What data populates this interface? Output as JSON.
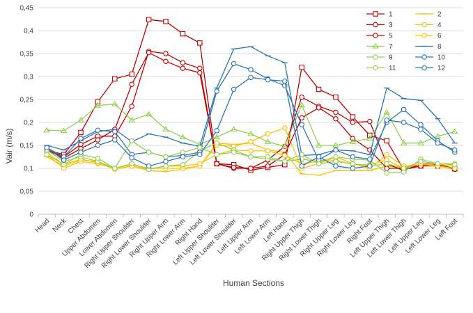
{
  "chart_data": {
    "type": "line",
    "title": "",
    "xlabel": "Human Sections",
    "ylabel": "Vair (m/s)",
    "ylim": [
      0,
      0.45
    ],
    "yticks": [
      "0",
      "0,05",
      "0,1",
      "0,15",
      "0,2",
      "0,25",
      "0,3",
      "0,35",
      "0,4",
      "0,45"
    ],
    "grid": "horizontal",
    "legend_position": "top-right",
    "categories": [
      "Head",
      "Neck",
      "Chest",
      "Upper Abdomen",
      "Lower Abdomen",
      "Right Upper Shoulder",
      "Right Lower Shoulder",
      "Right Upper Arm",
      "Right Lower Arm",
      "Right Hand",
      "Left Upper Shoulder",
      "Left Lower Shoulder",
      "Left Upper Arm",
      "Left Lower Arm",
      "Left Hand",
      "Right Upper Thigh",
      "Right Lower Thigh",
      "Right Upper Leg",
      "Right Lower Leg",
      "Right Foot",
      "Left Upper Thigh",
      "Left Lower Thigh",
      "Left Upper Leg",
      "Left Lower Leg",
      "Left Foot"
    ],
    "series": [
      {
        "name": "1",
        "color": "#c00000",
        "marker": "square",
        "values": [
          0.14,
          0.13,
          0.178,
          0.245,
          0.295,
          0.305,
          0.424,
          0.42,
          0.393,
          0.373,
          0.11,
          0.108,
          0.096,
          0.102,
          0.108,
          0.32,
          0.272,
          0.255,
          0.212,
          0.172,
          0.16,
          0.097,
          0.105,
          0.105,
          0.099
        ]
      },
      {
        "name": "2",
        "color": "#ffc000",
        "marker": "dash",
        "values": [
          0.125,
          0.105,
          0.118,
          0.115,
          0.098,
          0.105,
          0.095,
          0.093,
          0.098,
          0.105,
          0.155,
          0.152,
          0.155,
          0.14,
          0.135,
          0.088,
          0.085,
          0.095,
          0.095,
          0.095,
          0.105,
          0.1,
          0.105,
          0.105,
          0.098
        ]
      },
      {
        "name": "3",
        "color": "#c00000",
        "marker": "circle",
        "values": [
          0.14,
          0.125,
          0.152,
          0.17,
          0.17,
          0.235,
          0.355,
          0.35,
          0.33,
          0.318,
          0.11,
          0.1,
          0.1,
          0.118,
          0.148,
          0.255,
          0.235,
          0.222,
          0.2,
          0.202,
          0.11,
          0.095,
          0.11,
          0.108,
          0.1
        ]
      },
      {
        "name": "4",
        "color": "#ffc000",
        "marker": "circle",
        "values": [
          0.13,
          0.1,
          0.115,
          0.11,
          0.1,
          0.108,
          0.1,
          0.1,
          0.1,
          0.105,
          0.15,
          0.148,
          0.158,
          0.175,
          0.188,
          0.1,
          0.11,
          0.125,
          0.11,
          0.1,
          0.13,
          0.105,
          0.108,
          0.108,
          0.105
        ]
      },
      {
        "name": "5",
        "color": "#c00000",
        "marker": "circle",
        "values": [
          0.14,
          0.122,
          0.143,
          0.162,
          0.185,
          0.283,
          0.352,
          0.333,
          0.318,
          0.308,
          0.11,
          0.102,
          0.1,
          0.105,
          0.13,
          0.21,
          0.232,
          0.208,
          0.165,
          0.14,
          0.1,
          0.1,
          0.105,
          0.108,
          0.098
        ]
      },
      {
        "name": "6",
        "color": "#ffc000",
        "marker": "circle",
        "values": [
          0.135,
          0.108,
          0.12,
          0.112,
          0.098,
          0.105,
          0.098,
          0.105,
          0.105,
          0.11,
          0.13,
          0.14,
          0.138,
          0.138,
          0.128,
          0.11,
          0.115,
          0.118,
          0.108,
          0.108,
          0.118,
          0.1,
          0.11,
          0.105,
          0.1
        ]
      },
      {
        "name": "7",
        "color": "#92d050",
        "marker": "triangle",
        "values": [
          0.183,
          0.182,
          0.205,
          0.237,
          0.24,
          0.205,
          0.218,
          0.185,
          0.168,
          0.152,
          0.168,
          0.185,
          0.175,
          0.158,
          0.148,
          0.238,
          0.15,
          0.15,
          0.158,
          0.165,
          0.222,
          0.155,
          0.155,
          0.17,
          0.18
        ]
      },
      {
        "name": "8",
        "color": "#2e75b6",
        "marker": "dash",
        "values": [
          0.15,
          0.14,
          0.16,
          0.18,
          0.185,
          0.158,
          0.175,
          0.168,
          0.155,
          0.148,
          0.275,
          0.36,
          0.365,
          0.345,
          0.33,
          0.128,
          0.13,
          0.14,
          0.138,
          0.13,
          0.275,
          0.252,
          0.248,
          0.208,
          0.155
        ]
      },
      {
        "name": "9",
        "color": "#92d050",
        "marker": "circle",
        "values": [
          0.14,
          0.115,
          0.125,
          0.115,
          0.1,
          0.11,
          0.098,
          0.105,
          0.108,
          0.138,
          0.155,
          0.14,
          0.125,
          0.12,
          0.115,
          0.12,
          0.115,
          0.125,
          0.12,
          0.118,
          0.09,
          0.092,
          0.12,
          0.11,
          0.11
        ]
      },
      {
        "name": "10",
        "color": "#2e75b6",
        "marker": "circle",
        "values": [
          0.145,
          0.125,
          0.165,
          0.183,
          0.18,
          0.13,
          0.135,
          0.125,
          0.128,
          0.135,
          0.268,
          0.328,
          0.315,
          0.295,
          0.28,
          0.195,
          0.118,
          0.14,
          0.125,
          0.12,
          0.2,
          0.228,
          0.195,
          0.16,
          0.135
        ]
      },
      {
        "name": "11",
        "color": "#92d050",
        "marker": "circle",
        "values": [
          0.13,
          0.108,
          0.13,
          0.122,
          0.1,
          0.16,
          0.135,
          0.125,
          0.135,
          0.145,
          0.13,
          0.135,
          0.125,
          0.125,
          0.115,
          0.13,
          0.11,
          0.115,
          0.11,
          0.105,
          0.11,
          0.1,
          0.115,
          0.11,
          0.108
        ]
      },
      {
        "name": "12",
        "color": "#2e75b6",
        "marker": "circle",
        "values": [
          0.145,
          0.118,
          0.135,
          0.15,
          0.162,
          0.123,
          0.105,
          0.115,
          0.125,
          0.13,
          0.182,
          0.272,
          0.298,
          0.293,
          0.29,
          0.105,
          0.125,
          0.105,
          0.1,
          0.105,
          0.205,
          0.2,
          0.185,
          0.155,
          0.14
        ]
      }
    ]
  }
}
